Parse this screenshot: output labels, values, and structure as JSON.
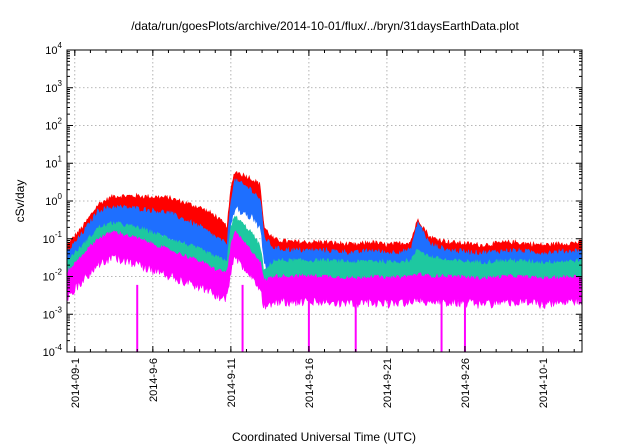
{
  "chart_data": {
    "type": "area",
    "title": "/data/run/goesPlots/archive/2014-10-01/flux/../bryn/31daysEarthData.plot",
    "xlabel": "Coordinated Universal Time (UTC)",
    "ylabel": "cSv/day",
    "yscale": "log",
    "ylim": [
      0.0001,
      10000
    ],
    "xlim": [
      "2014-08-31T12:00",
      "2014-10-03T12:00"
    ],
    "grid": true,
    "legend": "none",
    "yticks": [
      {
        "v": 0.0001,
        "base": "10",
        "exp": "-4"
      },
      {
        "v": 0.001,
        "base": "10",
        "exp": "-3"
      },
      {
        "v": 0.01,
        "base": "10",
        "exp": "-2"
      },
      {
        "v": 0.1,
        "base": "10",
        "exp": "-1"
      },
      {
        "v": 1,
        "base": "10",
        "exp": "0"
      },
      {
        "v": 10,
        "base": "10",
        "exp": "1"
      },
      {
        "v": 100,
        "base": "10",
        "exp": "2"
      },
      {
        "v": 1000,
        "base": "10",
        "exp": "3"
      },
      {
        "v": 10000,
        "base": "10",
        "exp": "4"
      }
    ],
    "xticks": [
      {
        "x": "2014-09-01",
        "label": "2014-09-1"
      },
      {
        "x": "2014-09-06",
        "label": "2014-9-6"
      },
      {
        "x": "2014-09-11",
        "label": "2014-9-11"
      },
      {
        "x": "2014-09-16",
        "label": "2014-9-16"
      },
      {
        "x": "2014-09-21",
        "label": "2014-9-21"
      },
      {
        "x": "2014-09-26",
        "label": "2014-9-26"
      },
      {
        "x": "2014-10-01",
        "label": "2014-10-1"
      }
    ],
    "series": [
      {
        "color": "#ff0000",
        "noise": 0.2,
        "points": [
          [
            "2014-08-31T12:00",
            0.05
          ],
          [
            "2014-09-01T12:00",
            0.15
          ],
          [
            "2014-09-02T12:00",
            0.6
          ],
          [
            "2014-09-03T12:00",
            1.0
          ],
          [
            "2014-09-05T00:00",
            1.0
          ],
          [
            "2014-09-07T00:00",
            0.9
          ],
          [
            "2014-09-09T00:00",
            0.5
          ],
          [
            "2014-09-10T00:00",
            0.3
          ],
          [
            "2014-09-10T18:00",
            0.15
          ],
          [
            "2014-09-11T00:00",
            1.5
          ],
          [
            "2014-09-11T06:00",
            4.5
          ],
          [
            "2014-09-12T06:00",
            3.0
          ],
          [
            "2014-09-12T21:00",
            2.0
          ],
          [
            "2014-09-13T03:00",
            0.15
          ],
          [
            "2014-09-13T18:00",
            0.07
          ],
          [
            "2014-09-15T00:00",
            0.06
          ],
          [
            "2014-09-17T00:00",
            0.06
          ],
          [
            "2014-09-19T00:00",
            0.05
          ],
          [
            "2014-09-20T00:00",
            0.06
          ],
          [
            "2014-09-21T00:00",
            0.05
          ],
          [
            "2014-09-22T12:00",
            0.06
          ],
          [
            "2014-09-23T00:00",
            0.25
          ],
          [
            "2014-09-23T18:00",
            0.08
          ],
          [
            "2014-09-25T00:00",
            0.06
          ],
          [
            "2014-09-27T00:00",
            0.05
          ],
          [
            "2014-09-29T00:00",
            0.06
          ],
          [
            "2014-10-01T00:00",
            0.05
          ],
          [
            "2014-10-03T12:00",
            0.06
          ]
        ]
      },
      {
        "color": "#1e6fff",
        "noise": 0.22,
        "points": [
          [
            "2014-08-31T12:00",
            0.03
          ],
          [
            "2014-09-01T12:00",
            0.1
          ],
          [
            "2014-09-02T12:00",
            0.4
          ],
          [
            "2014-09-03T12:00",
            0.5
          ],
          [
            "2014-09-05T00:00",
            0.45
          ],
          [
            "2014-09-07T00:00",
            0.35
          ],
          [
            "2014-09-09T00:00",
            0.15
          ],
          [
            "2014-09-10T00:00",
            0.08
          ],
          [
            "2014-09-10T18:00",
            0.05
          ],
          [
            "2014-09-11T00:00",
            0.8
          ],
          [
            "2014-09-11T06:00",
            2.5
          ],
          [
            "2014-09-12T06:00",
            1.5
          ],
          [
            "2014-09-12T21:00",
            0.8
          ],
          [
            "2014-09-13T03:00",
            0.08
          ],
          [
            "2014-09-13T18:00",
            0.04
          ],
          [
            "2014-09-15T00:00",
            0.035
          ],
          [
            "2014-09-17T00:00",
            0.035
          ],
          [
            "2014-09-19T00:00",
            0.03
          ],
          [
            "2014-09-20T00:00",
            0.035
          ],
          [
            "2014-09-21T00:00",
            0.03
          ],
          [
            "2014-09-22T12:00",
            0.035
          ],
          [
            "2014-09-23T00:00",
            0.2
          ],
          [
            "2014-09-23T18:00",
            0.05
          ],
          [
            "2014-09-25T00:00",
            0.035
          ],
          [
            "2014-09-27T00:00",
            0.03
          ],
          [
            "2014-09-29T00:00",
            0.035
          ],
          [
            "2014-10-01T00:00",
            0.03
          ],
          [
            "2014-10-03T12:00",
            0.035
          ]
        ]
      },
      {
        "color": "#1ec8a0",
        "noise": 0.18,
        "points": [
          [
            "2014-08-31T12:00",
            0.02
          ],
          [
            "2014-09-01T12:00",
            0.05
          ],
          [
            "2014-09-02T12:00",
            0.15
          ],
          [
            "2014-09-03T12:00",
            0.2
          ],
          [
            "2014-09-05T00:00",
            0.15
          ],
          [
            "2014-09-07T00:00",
            0.08
          ],
          [
            "2014-09-09T00:00",
            0.04
          ],
          [
            "2014-09-10T00:00",
            0.025
          ],
          [
            "2014-09-10T18:00",
            0.02
          ],
          [
            "2014-09-11T00:00",
            0.15
          ],
          [
            "2014-09-11T06:00",
            0.3
          ],
          [
            "2014-09-12T06:00",
            0.12
          ],
          [
            "2014-09-12T21:00",
            0.05
          ],
          [
            "2014-09-13T03:00",
            0.01
          ],
          [
            "2014-09-13T18:00",
            0.02
          ],
          [
            "2014-09-15T00:00",
            0.02
          ],
          [
            "2014-09-17T00:00",
            0.02
          ],
          [
            "2014-09-19T00:00",
            0.018
          ],
          [
            "2014-09-20T00:00",
            0.02
          ],
          [
            "2014-09-21T00:00",
            0.018
          ],
          [
            "2014-09-22T12:00",
            0.02
          ],
          [
            "2014-09-23T00:00",
            0.04
          ],
          [
            "2014-09-23T18:00",
            0.025
          ],
          [
            "2014-09-25T00:00",
            0.02
          ],
          [
            "2014-09-27T00:00",
            0.018
          ],
          [
            "2014-09-29T00:00",
            0.02
          ],
          [
            "2014-10-01T00:00",
            0.018
          ],
          [
            "2014-10-03T12:00",
            0.02
          ]
        ]
      },
      {
        "color": "#ff00ff",
        "noise": 0.16,
        "points": [
          [
            "2014-08-31T12:00",
            0.01
          ],
          [
            "2014-09-01T12:00",
            0.03
          ],
          [
            "2014-09-02T12:00",
            0.08
          ],
          [
            "2014-09-03T12:00",
            0.12
          ],
          [
            "2014-09-05T00:00",
            0.08
          ],
          [
            "2014-09-07T00:00",
            0.04
          ],
          [
            "2014-09-09T00:00",
            0.02
          ],
          [
            "2014-09-10T00:00",
            0.012
          ],
          [
            "2014-09-10T18:00",
            0.01
          ],
          [
            "2014-09-11T00:00",
            0.05
          ],
          [
            "2014-09-11T06:00",
            0.12
          ],
          [
            "2014-09-12T06:00",
            0.04
          ],
          [
            "2014-09-12T21:00",
            0.02
          ],
          [
            "2014-09-13T03:00",
            0.006
          ],
          [
            "2014-09-13T18:00",
            0.008
          ],
          [
            "2014-09-15T00:00",
            0.008
          ],
          [
            "2014-09-17T00:00",
            0.008
          ],
          [
            "2014-09-19T00:00",
            0.007
          ],
          [
            "2014-09-20T00:00",
            0.008
          ],
          [
            "2014-09-21T00:00",
            0.007
          ],
          [
            "2014-09-22T12:00",
            0.008
          ],
          [
            "2014-09-23T00:00",
            0.009
          ],
          [
            "2014-09-23T18:00",
            0.008
          ],
          [
            "2014-09-25T00:00",
            0.008
          ],
          [
            "2014-09-27T00:00",
            0.007
          ],
          [
            "2014-09-29T00:00",
            0.008
          ],
          [
            "2014-10-01T00:00",
            0.007
          ],
          [
            "2014-10-03T12:00",
            0.008
          ]
        ]
      }
    ],
    "dropouts": [
      "2014-09-05T00:00",
      "2014-09-11T18:00",
      "2014-09-16T00:00",
      "2014-09-19T00:00",
      "2014-09-24T12:00",
      "2014-09-26T00:00"
    ]
  }
}
